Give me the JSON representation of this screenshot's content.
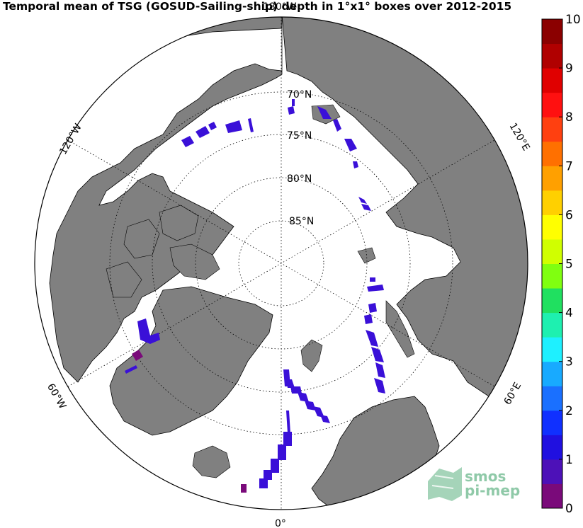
{
  "title": "Temporal mean of TSG (GOSUD-Sailing-ship) depth in 1°x1° boxes over 2012-2015",
  "map": {
    "projection": "north polar stereographic",
    "latitude_labels": [
      "70°N",
      "75°N",
      "80°N",
      "85°N"
    ],
    "longitude_labels": {
      "top": "180°W",
      "left_upper": "120°W",
      "left_lower": "60°W",
      "bottom": "0°",
      "right_upper": "120°E",
      "right_lower": "60°E"
    },
    "colors": {
      "land": "#808080",
      "ocean": "#ffffff",
      "track": "#3a10d8",
      "track_dark": "#5a0aa0",
      "track_purple": "#7a0a7a"
    }
  },
  "colorbar": {
    "ticks": [
      "0",
      "1",
      "2",
      "3",
      "4",
      "5",
      "6",
      "7",
      "8",
      "9",
      "10"
    ],
    "min": 0,
    "max": 10,
    "colors": [
      "#7a0a7a",
      "#4d11b8",
      "#2010e0",
      "#1030ff",
      "#1a70ff",
      "#18aaff",
      "#1ef0ff",
      "#1ef0b0",
      "#20e060",
      "#80ff10",
      "#d0ff00",
      "#ffff00",
      "#ffd000",
      "#ffa000",
      "#ff7000",
      "#ff4010",
      "#ff1010",
      "#e00000",
      "#b00000",
      "#8b0000"
    ]
  },
  "logo": {
    "line1": "smos",
    "line2": "pi-mep"
  }
}
